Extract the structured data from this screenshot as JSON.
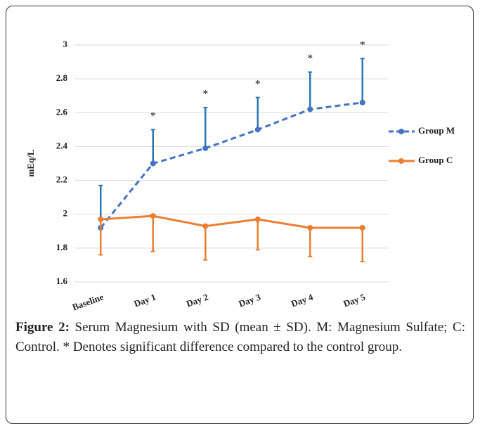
{
  "chart_data": {
    "type": "line",
    "categories": [
      "Baseline",
      "Day 1",
      "Day 2",
      "Day 3",
      "Day 4",
      "Day 5"
    ],
    "y_label": "mEq/L",
    "ylim": [
      1.6,
      3
    ],
    "yticks": [
      1.6,
      1.8,
      2,
      2.2,
      2.4,
      2.6,
      2.8,
      3
    ],
    "grid": true,
    "annotations": [
      null,
      "*",
      "*",
      "*",
      "*",
      "*"
    ],
    "series": [
      {
        "name": "Group M",
        "color": "#4472c4",
        "error_color": "#2e75b6",
        "dash": true,
        "error_direction": "up",
        "values": [
          1.92,
          2.3,
          2.39,
          2.5,
          2.62,
          2.66
        ],
        "errors": [
          0.25,
          0.2,
          0.24,
          0.19,
          0.22,
          0.26
        ]
      },
      {
        "name": "Group C",
        "color": "#ed7d31",
        "error_color": "#ed7d31",
        "dash": false,
        "error_direction": "down",
        "values": [
          1.97,
          1.99,
          1.93,
          1.97,
          1.92,
          1.92
        ],
        "errors": [
          0.21,
          0.21,
          0.2,
          0.18,
          0.17,
          0.2
        ]
      }
    ]
  },
  "caption": {
    "label": "Figure 2:",
    "text": " Serum Magnesium with SD (mean ± SD). M: Magnesium Sulfate; C: Control. * Denotes significant difference compared to the control group."
  }
}
